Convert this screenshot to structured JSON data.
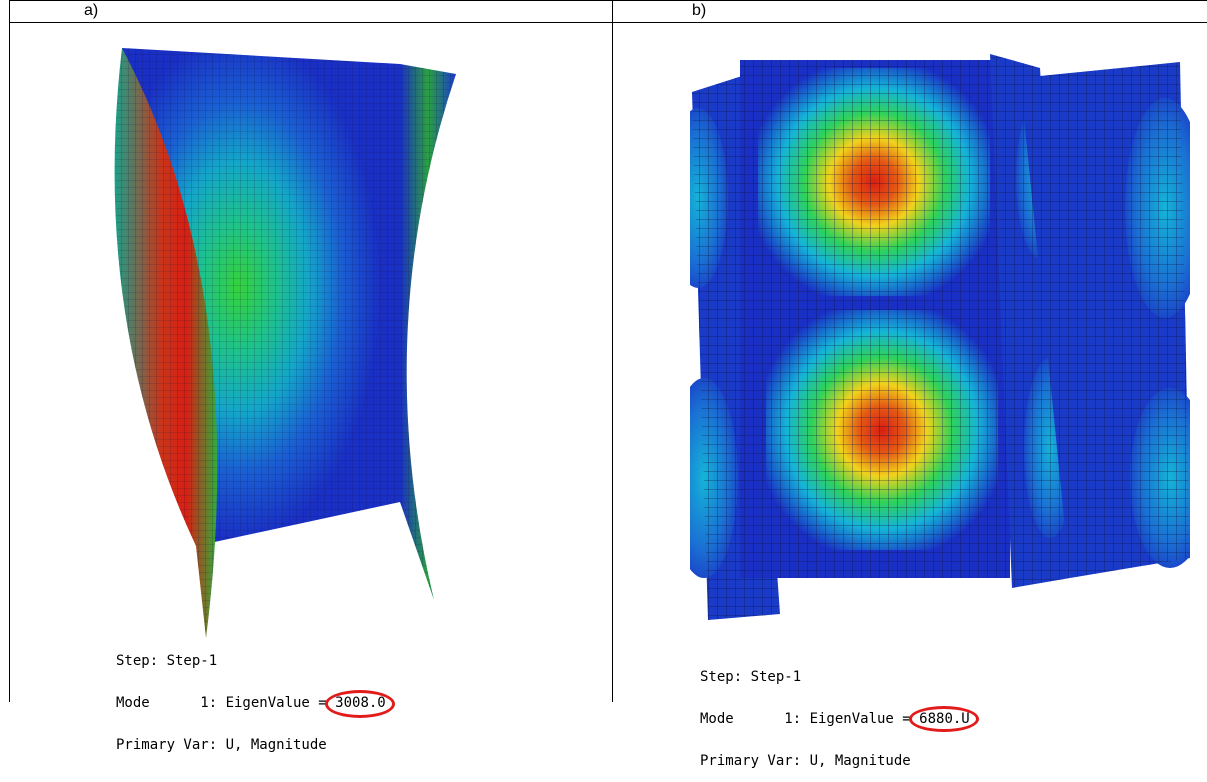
{
  "panels": [
    {
      "label": "a)",
      "step": "Step: Step-1",
      "mode_prefix": "Mode      1: EigenValue = ",
      "eigenvalue": "3008.0",
      "primary": "Primary Var: U, Magnitude",
      "highlight_color": "#e21b1b"
    },
    {
      "label": "b)",
      "step": "Step: Step-1",
      "mode_prefix": "Mode      1: EigenValue = ",
      "eigenvalue": "6880.U",
      "primary": "Primary Var: U, Magnitude",
      "highlight_color": "#e21b1b"
    }
  ],
  "colors": {
    "low": "#1a2fc4",
    "mid_low": "#15b4d8",
    "mid": "#2fd25a",
    "mid_high": "#f2d21c",
    "high": "#d81e12",
    "mesh_line": "#0a0f3a"
  }
}
